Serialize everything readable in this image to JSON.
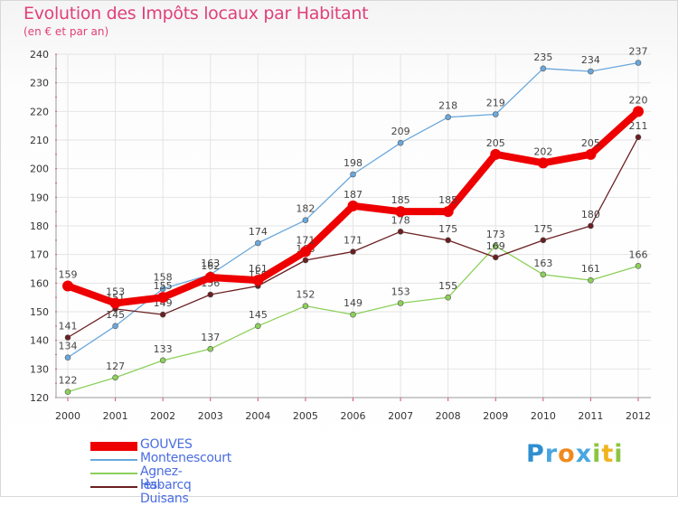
{
  "header": {
    "title": "Evolution des Impôts locaux par Habitant",
    "subtitle": "(en € et par an)"
  },
  "chart_data": {
    "type": "line",
    "title": "Evolution des Impôts locaux par Habitant",
    "subtitle": "(en € et par an)",
    "xlabel": "",
    "ylabel": "",
    "x": [
      "2000",
      "2001",
      "2002",
      "2003",
      "2004",
      "2005",
      "2006",
      "2007",
      "2008",
      "2009",
      "2010",
      "2011",
      "2012"
    ],
    "ylim": [
      120,
      240
    ],
    "yticks": [
      120,
      130,
      140,
      150,
      160,
      170,
      180,
      190,
      200,
      210,
      220,
      230,
      240
    ],
    "grid": true,
    "legend_position": "bottom-left",
    "series": [
      {
        "name": "Montenescourt",
        "color": "#6aa8dc",
        "values": [
          134,
          145,
          158,
          163,
          174,
          182,
          198,
          209,
          218,
          219,
          235,
          234,
          237
        ]
      },
      {
        "name": "Agnez-lès-Duisans",
        "color": "#8cd05a",
        "values": [
          122,
          127,
          133,
          137,
          145,
          152,
          149,
          153,
          155,
          173,
          163,
          161,
          166
        ]
      },
      {
        "name": "Habarcq",
        "color": "#6b1f22",
        "values": [
          141,
          151,
          149,
          156,
          159,
          168,
          171,
          178,
          175,
          169,
          175,
          180,
          211
        ]
      },
      {
        "name": "GOUVES",
        "color": "#ee0000",
        "values": [
          159,
          153,
          155,
          162,
          161,
          171,
          187,
          185,
          185,
          205,
          202,
          205,
          220
        ]
      }
    ]
  },
  "legend": {
    "items": [
      {
        "label": "GOUVES",
        "color": "#ee0000"
      },
      {
        "label": "Montenescourt",
        "color": "#6aa8dc"
      },
      {
        "label": "Agnez-lès-Duisans",
        "color": "#8cd05a"
      },
      {
        "label": "Habarcq",
        "color": "#6b1f22"
      }
    ]
  },
  "logo": {
    "p": "P",
    "r": "r",
    "o": "o",
    "x": "x",
    "i": "i",
    "t": "t",
    "i2": "i"
  }
}
